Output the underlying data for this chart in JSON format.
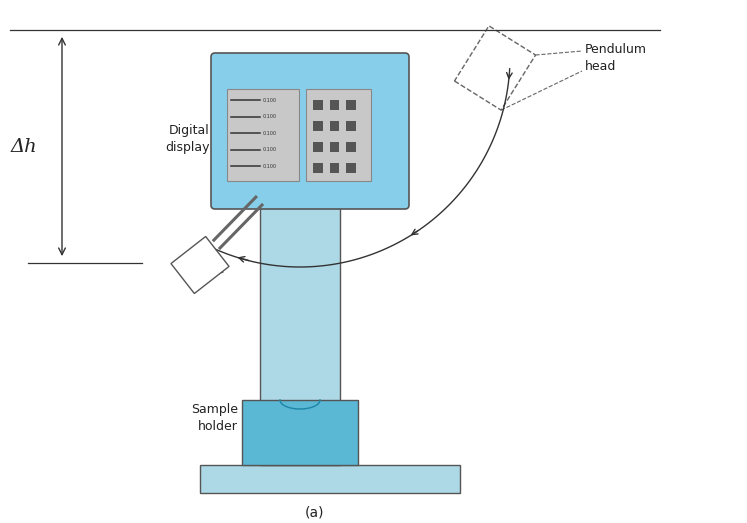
{
  "light_blue": "#87CEEB",
  "medium_blue": "#5BB8D4",
  "light_blue2": "#ADD8E6",
  "gray_display": "#C8C8C8",
  "title": "(a)",
  "label_digital_display": "Digital\ndisplay",
  "label_sample_holder": "Sample\nholder",
  "label_pendulum_head": "Pendulum\nhead",
  "label_delta_h": "Δh",
  "display_values": [
    "0.100",
    "0.100",
    "0.100",
    "0.100",
    "0.100"
  ],
  "edge_color": "#555555",
  "text_color": "#222222"
}
